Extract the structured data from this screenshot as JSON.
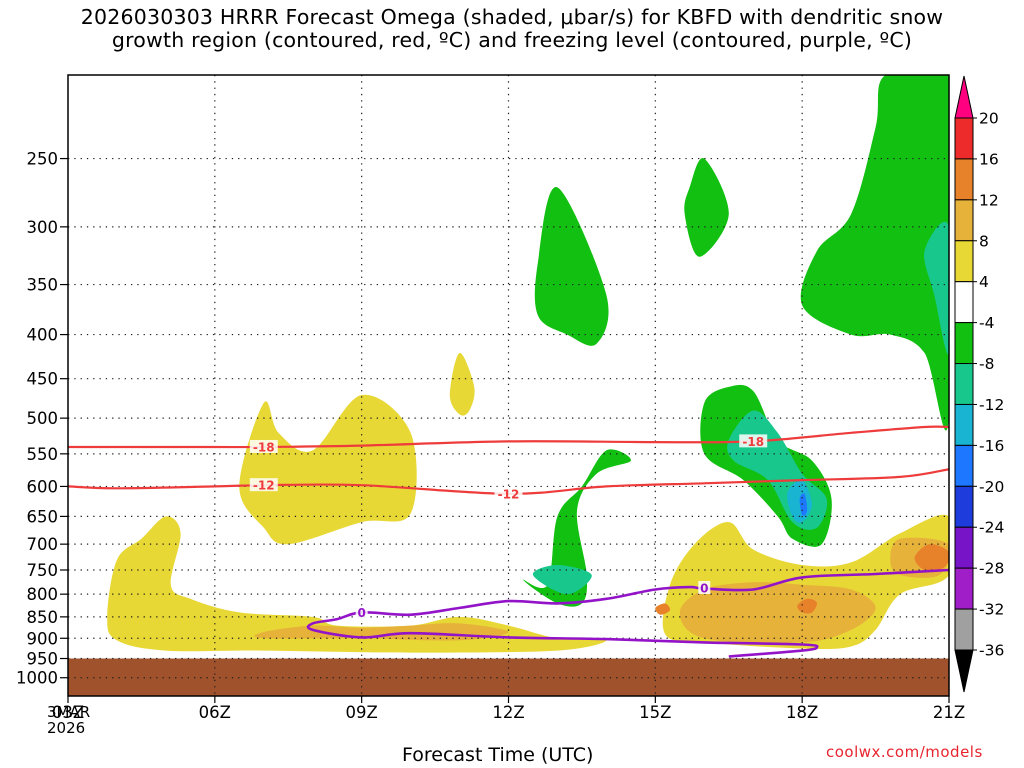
{
  "title_lines": [
    "2026030303 HRRR Forecast Omega (shaded, μbar/s) for KBFD with dendritic snow",
    "growth region (contoured, red, ºC) and freezing level (contoured, purple, ºC)"
  ],
  "credit": "coolwx.com/models",
  "date_lines": [
    "3MAR",
    "2026"
  ],
  "colors": {
    "ground": "#a0522d",
    "dgz_contour": "#ee3c3c",
    "freezing_contour": "#9314c8",
    "grid": "#8c8c8c"
  },
  "chart_data": {
    "type": "heatmap",
    "xlabel": "Forecast Time (UTC)",
    "x_ticks": [
      "03Z",
      "06Z",
      "09Z",
      "12Z",
      "15Z",
      "18Z",
      "21Z"
    ],
    "x_range_hours": [
      3,
      21
    ],
    "y_ticks": [
      250,
      300,
      350,
      400,
      450,
      500,
      550,
      600,
      650,
      700,
      750,
      800,
      850,
      900,
      950,
      1000
    ],
    "y_axis": "pressure (hPa), log scale, inverted",
    "y_range_hpa": [
      200,
      1050
    ],
    "ground_above_hpa": 950,
    "colorbar": {
      "labels": [
        "20",
        "16",
        "12",
        "8",
        "4",
        "-4",
        "-8",
        "-12",
        "-16",
        "-20",
        "-24",
        "-28",
        "-32",
        "-36"
      ],
      "colors": [
        "#ff0080",
        "#ee2b2b",
        "#e8822a",
        "#e6b23a",
        "#e8d835",
        "#ffffff",
        "#12c012",
        "#17c78c",
        "#19b4d2",
        "#1e78ff",
        "#1e3cdc",
        "#7814c8",
        "#a01ec8",
        "#a0a0a0",
        "#000000"
      ]
    },
    "contours": [
      {
        "label": "-18",
        "points": [
          [
            3,
            540
          ],
          [
            4.5,
            540
          ],
          [
            6,
            540
          ],
          [
            7,
            540
          ],
          [
            9,
            538
          ],
          [
            12,
            532
          ],
          [
            15,
            533
          ],
          [
            17,
            532
          ],
          [
            19,
            520
          ],
          [
            20.5,
            512
          ],
          [
            21,
            512
          ]
        ]
      },
      {
        "label": "-12",
        "points": [
          [
            3,
            600
          ],
          [
            4,
            603
          ],
          [
            6,
            600
          ],
          [
            7,
            598
          ],
          [
            9,
            598
          ],
          [
            12,
            612
          ],
          [
            14,
            600
          ],
          [
            16,
            595
          ],
          [
            18,
            590
          ],
          [
            20,
            585
          ],
          [
            21,
            573
          ]
        ]
      },
      {
        "label": "0",
        "points": [
          [
            16.5,
            945
          ],
          [
            18,
            930
          ],
          [
            18.3,
            922
          ],
          [
            18,
            915
          ],
          [
            16,
            910
          ],
          [
            14,
            902
          ],
          [
            12,
            898
          ],
          [
            10,
            888
          ],
          [
            9,
            898
          ],
          [
            8,
            880
          ],
          [
            8,
            865
          ],
          [
            8.5,
            855
          ],
          [
            9,
            840
          ],
          [
            10,
            845
          ],
          [
            11,
            830
          ],
          [
            12,
            815
          ],
          [
            13,
            820
          ],
          [
            14,
            810
          ],
          [
            15,
            790
          ],
          [
            15.7,
            785
          ],
          [
            16,
            788
          ],
          [
            17,
            790
          ],
          [
            18,
            765
          ],
          [
            19.5,
            758
          ],
          [
            21,
            750
          ]
        ]
      }
    ],
    "shaded_regions": [
      {
        "omega": "4 to 8",
        "color": "#e8d835",
        "points": [
          [
            4,
            905
          ],
          [
            3.8,
            850
          ],
          [
            4,
            730
          ],
          [
            4.5,
            690
          ],
          [
            5,
            650
          ],
          [
            5.3,
            680
          ],
          [
            5.1,
            780
          ],
          [
            5.5,
            810
          ],
          [
            6.5,
            840
          ],
          [
            8,
            850
          ],
          [
            8.5,
            870
          ],
          [
            10,
            870
          ],
          [
            11,
            850
          ],
          [
            12,
            870
          ],
          [
            13,
            900
          ],
          [
            14,
            905
          ],
          [
            13,
            930
          ],
          [
            10,
            935
          ],
          [
            7,
            930
          ],
          [
            5,
            930
          ]
        ]
      },
      {
        "omega": "4 to 8",
        "color": "#e8d835",
        "points": [
          [
            6.5,
            600
          ],
          [
            7,
            480
          ],
          [
            7.3,
            520
          ],
          [
            8,
            545
          ],
          [
            9,
            470
          ],
          [
            10,
            520
          ],
          [
            10,
            645
          ],
          [
            9,
            660
          ],
          [
            7.5,
            700
          ],
          [
            7,
            670
          ]
        ]
      },
      {
        "omega": "4 to 8",
        "color": "#e8d835",
        "points": [
          [
            10.8,
            470
          ],
          [
            11,
            420
          ],
          [
            11.3,
            460
          ],
          [
            11.2,
            490
          ],
          [
            11,
            495
          ]
        ]
      },
      {
        "omega": "4 to 8",
        "color": "#e8d835",
        "points": [
          [
            15.2,
            890
          ],
          [
            15.3,
            780
          ],
          [
            15.8,
            700
          ],
          [
            16.5,
            660
          ],
          [
            17,
            710
          ],
          [
            18,
            740
          ],
          [
            19,
            735
          ],
          [
            20,
            680
          ],
          [
            21,
            650
          ],
          [
            21,
            760
          ],
          [
            20,
            800
          ],
          [
            19.5,
            880
          ],
          [
            19,
            920
          ],
          [
            18,
            925
          ],
          [
            16,
            910
          ]
        ]
      },
      {
        "omega": "8 to 12",
        "color": "#e6b23a",
        "points": [
          [
            7,
            885
          ],
          [
            8,
            870
          ],
          [
            9,
            875
          ],
          [
            10,
            870
          ],
          [
            11,
            865
          ],
          [
            12,
            885
          ],
          [
            11,
            905
          ],
          [
            9,
            900
          ],
          [
            7,
            900
          ]
        ]
      },
      {
        "omega": "8 to 12",
        "color": "#e6b23a",
        "points": [
          [
            15.5,
            840
          ],
          [
            16,
            790
          ],
          [
            17,
            775
          ],
          [
            18,
            780
          ],
          [
            19,
            790
          ],
          [
            19.5,
            830
          ],
          [
            19,
            880
          ],
          [
            18,
            910
          ],
          [
            16,
            900
          ]
        ]
      },
      {
        "omega": "8 to 12",
        "color": "#e6b23a",
        "points": [
          [
            19.8,
            730
          ],
          [
            20,
            690
          ],
          [
            21,
            700
          ],
          [
            20.8,
            760
          ],
          [
            20,
            760
          ]
        ]
      },
      {
        "omega": "12 to 16",
        "color": "#e8822a",
        "points": [
          [
            20.3,
            725
          ],
          [
            20.6,
            700
          ],
          [
            21,
            715
          ],
          [
            20.9,
            745
          ],
          [
            20.5,
            750
          ]
        ]
      },
      {
        "omega": "12 to 16",
        "color": "#e8822a",
        "points": [
          [
            17.9,
            825
          ],
          [
            18.1,
            810
          ],
          [
            18.3,
            818
          ],
          [
            18.2,
            840
          ],
          [
            18,
            840
          ]
        ]
      },
      {
        "omega": "12 to 16",
        "color": "#e8822a",
        "points": [
          [
            15.0,
            830
          ],
          [
            15.2,
            820
          ],
          [
            15.3,
            835
          ],
          [
            15.1,
            845
          ]
        ]
      },
      {
        "omega": "-4 to -8",
        "color": "#12c012",
        "points": [
          [
            12.8,
            780
          ],
          [
            13,
            650
          ],
          [
            13.5,
            600
          ],
          [
            14,
            545
          ],
          [
            14.5,
            560
          ],
          [
            13.8,
            580
          ],
          [
            13.4,
            640
          ],
          [
            13.6,
            760
          ],
          [
            13.5,
            820
          ],
          [
            13,
            820
          ],
          [
            12.3,
            770
          ]
        ]
      },
      {
        "omega": "-4 to -8",
        "color": "#12c012",
        "points": [
          [
            12.6,
            330
          ],
          [
            13,
            270
          ],
          [
            14,
            360
          ],
          [
            13.8,
            410
          ],
          [
            13.2,
            400
          ],
          [
            12.6,
            380
          ]
        ]
      },
      {
        "omega": "-4 to -8",
        "color": "#12c012",
        "points": [
          [
            15.7,
            270
          ],
          [
            16,
            250
          ],
          [
            16.5,
            290
          ],
          [
            15.9,
            325
          ],
          [
            15.6,
            290
          ]
        ]
      },
      {
        "omega": "-4 to -8",
        "color": "#12c012",
        "points": [
          [
            16,
            480
          ],
          [
            16.5,
            460
          ],
          [
            17,
            465
          ],
          [
            17.5,
            530
          ],
          [
            18.2,
            560
          ],
          [
            18.6,
            620
          ],
          [
            18.4,
            700
          ],
          [
            17.8,
            690
          ],
          [
            17.5,
            650
          ],
          [
            16.8,
            590
          ],
          [
            16,
            550
          ]
        ]
      },
      {
        "omega": "-4 to -8",
        "color": "#12c012",
        "points": [
          [
            19.5,
            230
          ],
          [
            19.7,
            200
          ],
          [
            21,
            200
          ],
          [
            21,
            500
          ],
          [
            20.5,
            420
          ],
          [
            19.8,
            400
          ],
          [
            19,
            400
          ],
          [
            18,
            370
          ],
          [
            18.3,
            320
          ],
          [
            19,
            290
          ]
        ]
      },
      {
        "omega": "-8 to -12",
        "color": "#17c78c",
        "points": [
          [
            12.5,
            760
          ],
          [
            13,
            740
          ],
          [
            13.7,
            760
          ],
          [
            13.2,
            800
          ]
        ]
      },
      {
        "omega": "-8 to -12",
        "color": "#17c78c",
        "points": [
          [
            16.5,
            530
          ],
          [
            17,
            490
          ],
          [
            17.5,
            520
          ],
          [
            18,
            580
          ],
          [
            18.5,
            620
          ],
          [
            18.3,
            670
          ],
          [
            17.8,
            660
          ],
          [
            17.3,
            590
          ],
          [
            16.6,
            560
          ]
        ]
      },
      {
        "omega": "-8 to -12",
        "color": "#17c78c",
        "points": [
          [
            20.5,
            320
          ],
          [
            21,
            300
          ],
          [
            21,
            420
          ],
          [
            20.7,
            360
          ]
        ]
      },
      {
        "omega": "-12 to -16",
        "color": "#19b4d2",
        "points": [
          [
            17.7,
            610
          ],
          [
            18,
            590
          ],
          [
            18.2,
            630
          ],
          [
            18,
            660
          ],
          [
            17.8,
            650
          ]
        ]
      },
      {
        "omega": "-16 to -20",
        "color": "#1e78ff",
        "points": [
          [
            17.95,
            620
          ],
          [
            18.05,
            612
          ],
          [
            18.1,
            640
          ],
          [
            18,
            648
          ]
        ]
      }
    ]
  }
}
